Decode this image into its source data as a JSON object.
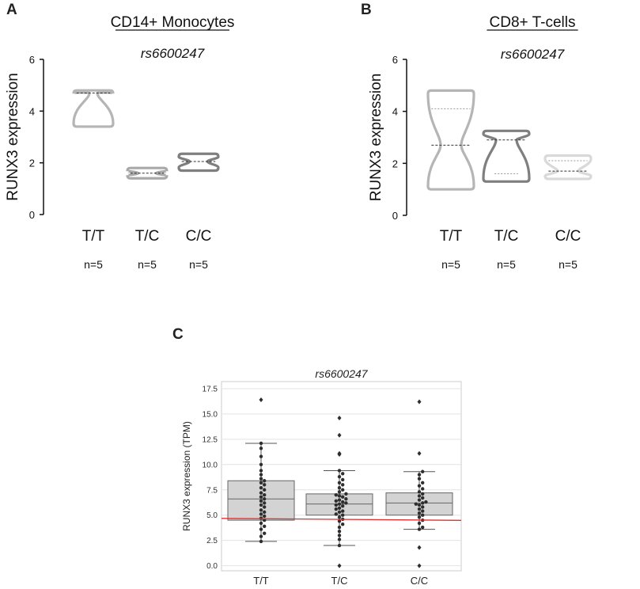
{
  "panel_labels": {
    "a": "A",
    "b": "B",
    "c": "C"
  },
  "chart_data": [
    {
      "id": "A",
      "type": "violin",
      "title": "CD14+ Monocytes",
      "subtitle": "rs6600247",
      "ylabel": "RUNX3 expression",
      "ylim": [
        0,
        6
      ],
      "yticks": [
        "0",
        "2",
        "4",
        "6"
      ],
      "categories": [
        "T/T",
        "T/C",
        "C/C"
      ],
      "n_labels": [
        "n=5",
        "n=5",
        "n=5"
      ],
      "colors": [
        "#b5b5b5",
        "#a9a9a9",
        "#7f7f7f"
      ],
      "series": [
        {
          "name": "T/T",
          "min": 3.4,
          "max": 4.8,
          "median": 4.7
        },
        {
          "name": "T/C",
          "min": 1.4,
          "max": 1.8,
          "median": 1.6
        },
        {
          "name": "C/C",
          "min": 1.7,
          "max": 2.35,
          "median": 2.05
        }
      ]
    },
    {
      "id": "B",
      "type": "violin",
      "title": "CD8+ T-cells",
      "subtitle": "rs6600247",
      "ylabel": "RUNX3 expression",
      "ylim": [
        0,
        6
      ],
      "yticks": [
        "0",
        "2",
        "4",
        "6"
      ],
      "categories": [
        "T/T",
        "T/C",
        "C/C"
      ],
      "n_labels": [
        "n=5",
        "n=5",
        "n=5"
      ],
      "colors": [
        "#b5b5b5",
        "#7f7f7f",
        "#d9d9d9"
      ],
      "series": [
        {
          "name": "T/T",
          "min": 1.0,
          "max": 4.8,
          "median": 2.7,
          "q3": 4.1
        },
        {
          "name": "T/C",
          "min": 1.3,
          "max": 3.25,
          "median": 2.9,
          "q1": 1.6
        },
        {
          "name": "C/C",
          "min": 1.4,
          "max": 2.3,
          "median": 1.7,
          "q3": 2.1
        }
      ]
    },
    {
      "id": "C",
      "type": "box+swarm",
      "subtitle": "rs6600247",
      "ylabel": "RUNX3 expression (TPM)",
      "ylim": [
        -0.5,
        18.2
      ],
      "yticks": [
        "0.0",
        "2.5",
        "5.0",
        "7.5",
        "10.0",
        "12.5",
        "15.0",
        "17.5"
      ],
      "categories": [
        "T/T",
        "T/C",
        "C/C"
      ],
      "reference_line": 4.6,
      "reference_color": "#e03030",
      "box_color": "#d3d3d3",
      "point_color": "#2e2e2e",
      "series": [
        {
          "name": "T/T",
          "whisker_low": 2.4,
          "q1": 4.5,
          "median": 6.6,
          "q3": 8.4,
          "whisker_high": 12.1,
          "outliers": [
            16.4
          ],
          "points": [
            2.4,
            2.9,
            3.2,
            3.6,
            3.9,
            4.2,
            4.5,
            4.7,
            4.9,
            5.1,
            5.3,
            5.5,
            5.8,
            6.0,
            6.2,
            6.4,
            6.6,
            6.8,
            7.0,
            7.2,
            7.5,
            7.7,
            8.0,
            8.2,
            8.4,
            8.6,
            9.0,
            9.4,
            10.0,
            10.8,
            11.6,
            12.1
          ]
        },
        {
          "name": "T/C",
          "whisker_low": 2.0,
          "q1": 5.0,
          "median": 6.1,
          "q3": 7.1,
          "whisker_high": 9.4,
          "outliers": [
            0.0,
            11.1,
            11.0,
            12.9,
            14.6
          ],
          "points": [
            2.0,
            2.6,
            3.0,
            3.4,
            3.8,
            4.1,
            4.4,
            4.6,
            4.8,
            5.0,
            5.1,
            5.3,
            5.4,
            5.6,
            5.7,
            5.9,
            6.0,
            6.1,
            6.2,
            6.3,
            6.4,
            6.5,
            6.6,
            6.8,
            6.9,
            7.0,
            7.1,
            7.3,
            7.5,
            7.7,
            8.0,
            8.2,
            8.5,
            8.8,
            9.1,
            9.4
          ]
        },
        {
          "name": "C/C",
          "whisker_low": 3.6,
          "q1": 5.0,
          "median": 6.2,
          "q3": 7.2,
          "whisker_high": 9.3,
          "outliers": [
            0.0,
            1.8,
            11.1,
            16.2
          ],
          "points": [
            3.6,
            3.8,
            4.2,
            4.5,
            4.8,
            5.0,
            5.2,
            5.4,
            5.6,
            5.8,
            6.0,
            6.1,
            6.2,
            6.3,
            6.5,
            6.7,
            6.9,
            7.1,
            7.3,
            7.6,
            7.9,
            8.2,
            8.6,
            9.0,
            9.3
          ]
        }
      ]
    }
  ]
}
